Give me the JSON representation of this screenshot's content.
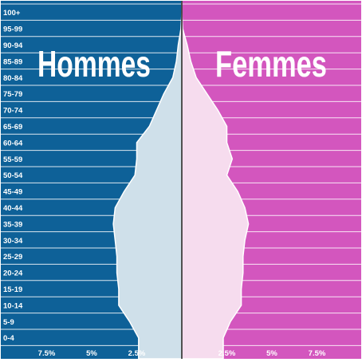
{
  "chart_data": {
    "type": "area",
    "subtype": "population-pyramid",
    "categories": [
      "0-4",
      "5-9",
      "10-14",
      "15-19",
      "20-24",
      "25-29",
      "30-34",
      "35-39",
      "40-44",
      "45-49",
      "50-54",
      "55-59",
      "60-64",
      "65-69",
      "70-74",
      "75-79",
      "80-84",
      "85-89",
      "90-94",
      "95-99",
      "100+"
    ],
    "series": [
      {
        "name": "Hommes",
        "side": "left",
        "values": [
          2.4,
          2.9,
          3.5,
          3.5,
          3.6,
          3.6,
          3.7,
          3.8,
          3.7,
          3.2,
          2.6,
          2.5,
          2.5,
          1.8,
          1.4,
          1.0,
          0.5,
          0.3,
          0.2,
          0.05,
          0.0
        ]
      },
      {
        "name": "Femmes",
        "side": "right",
        "values": [
          2.3,
          2.7,
          3.3,
          3.3,
          3.4,
          3.4,
          3.5,
          3.7,
          3.5,
          3.1,
          2.5,
          2.8,
          2.5,
          2.5,
          2.0,
          1.4,
          0.8,
          0.5,
          0.3,
          0.05,
          0.0
        ]
      }
    ],
    "x_ticks_left": [
      "7.5%",
      "5%",
      "2.5%"
    ],
    "x_ticks_right": [
      "2.5%",
      "5%",
      "7.5%"
    ],
    "xlim": [
      -8.6,
      8.6
    ],
    "grid": true,
    "colors": {
      "hommes_bg": "#0e6198",
      "femmes_bg": "#d356be",
      "hommes_area": "#cfe0ea",
      "femmes_area": "#f6dcee",
      "grid": "#ffffff",
      "divider": "#1a1a1a"
    },
    "labels": {
      "left": "Hommes",
      "right": "Femmes"
    }
  }
}
